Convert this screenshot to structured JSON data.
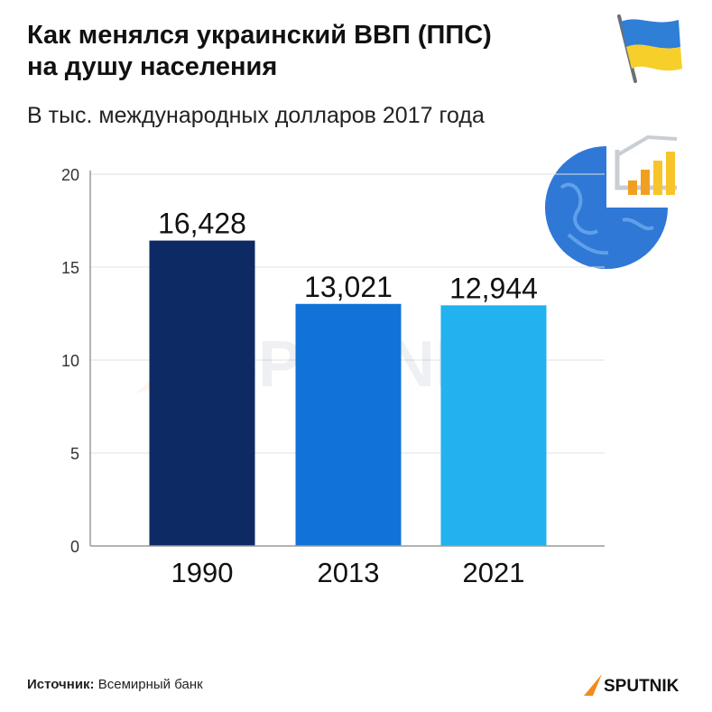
{
  "header": {
    "title_line1": "Как менялся украинский ВВП (ППС)",
    "title_line2": "на душу населения",
    "subtitle": "В тыс. международных долларов 2017 года"
  },
  "icons": {
    "flag": "ukraine-flag-icon",
    "globe": "globe-chart-icon"
  },
  "footer": {
    "source_label": "Источник:",
    "source_value": "Всемирный банк",
    "logo_text": "SPUTNIK"
  },
  "watermark": "SPUTNIK",
  "colors": {
    "bar_1990": "#0d2a64",
    "bar_2013": "#1173d8",
    "bar_2021": "#22b2ef",
    "grid": "#e0e0e0",
    "axis": "#9a9a9a",
    "logo_orange": "#f28a1c"
  },
  "chart_data": {
    "type": "bar",
    "categories": [
      "1990",
      "2013",
      "2021"
    ],
    "values": [
      16.428,
      13.021,
      12.944
    ],
    "data_labels": [
      "16,428",
      "13,021",
      "12,944"
    ],
    "yticks": [
      0,
      5,
      10,
      15,
      20
    ],
    "ylim": [
      0,
      20
    ],
    "grid": true,
    "legend": "none"
  }
}
